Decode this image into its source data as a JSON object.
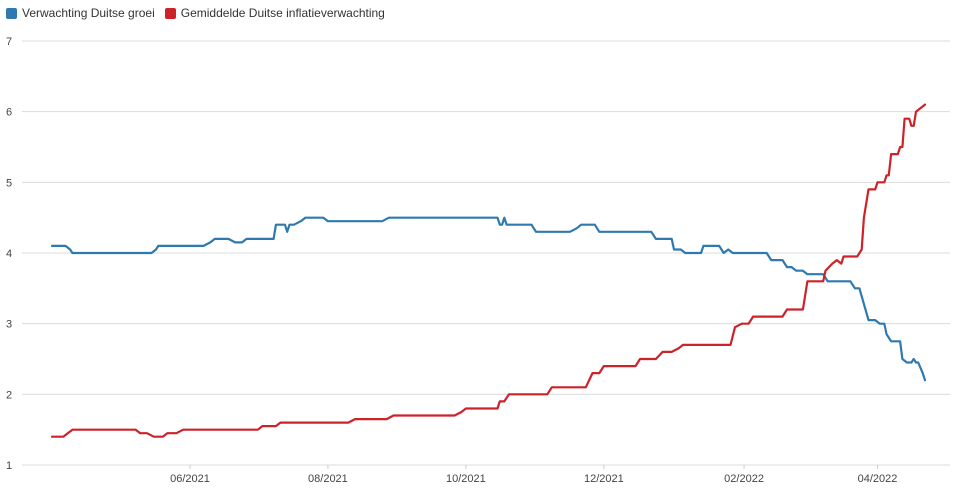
{
  "chart_data": {
    "type": "line",
    "title": "",
    "xlabel": "",
    "ylabel": "",
    "ylim": [
      1,
      7
    ],
    "y_ticks": [
      1,
      2,
      3,
      4,
      5,
      6,
      7
    ],
    "x_ticks": [
      "06/2021",
      "08/2021",
      "10/2021",
      "12/2021",
      "02/2022",
      "04/2022"
    ],
    "x_range": [
      "2021-04-01",
      "2022-04-22"
    ],
    "grid": true,
    "legend_position": "top-left",
    "series": [
      {
        "name": "Verwachting Duitse groei",
        "color": "#2e79b0",
        "points": [
          [
            "2021-04-01",
            4.1
          ],
          [
            "2021-04-07",
            4.1
          ],
          [
            "2021-04-09",
            4.05
          ],
          [
            "2021-04-10",
            4.0
          ],
          [
            "2021-05-01",
            4.0
          ],
          [
            "2021-05-15",
            4.0
          ],
          [
            "2021-05-17",
            4.05
          ],
          [
            "2021-05-18",
            4.1
          ],
          [
            "2021-06-07",
            4.1
          ],
          [
            "2021-06-10",
            4.15
          ],
          [
            "2021-06-12",
            4.2
          ],
          [
            "2021-06-18",
            4.2
          ],
          [
            "2021-06-21",
            4.15
          ],
          [
            "2021-06-24",
            4.15
          ],
          [
            "2021-06-26",
            4.2
          ],
          [
            "2021-07-08",
            4.2
          ],
          [
            "2021-07-09",
            4.4
          ],
          [
            "2021-07-13",
            4.4
          ],
          [
            "2021-07-14",
            4.3
          ],
          [
            "2021-07-15",
            4.4
          ],
          [
            "2021-07-17",
            4.4
          ],
          [
            "2021-07-20",
            4.45
          ],
          [
            "2021-07-22",
            4.5
          ],
          [
            "2021-07-30",
            4.5
          ],
          [
            "2021-08-01",
            4.45
          ],
          [
            "2021-08-25",
            4.45
          ],
          [
            "2021-08-28",
            4.5
          ],
          [
            "2021-10-15",
            4.5
          ],
          [
            "2021-10-16",
            4.4
          ],
          [
            "2021-10-17",
            4.4
          ],
          [
            "2021-10-18",
            4.5
          ],
          [
            "2021-10-19",
            4.4
          ],
          [
            "2021-10-30",
            4.4
          ],
          [
            "2021-11-01",
            4.3
          ],
          [
            "2021-11-16",
            4.3
          ],
          [
            "2021-11-19",
            4.35
          ],
          [
            "2021-11-21",
            4.4
          ],
          [
            "2021-11-27",
            4.4
          ],
          [
            "2021-11-28",
            4.35
          ],
          [
            "2021-11-29",
            4.3
          ],
          [
            "2021-12-22",
            4.3
          ],
          [
            "2021-12-24",
            4.2
          ],
          [
            "2021-12-31",
            4.2
          ],
          [
            "2022-01-01",
            4.05
          ],
          [
            "2022-01-04",
            4.05
          ],
          [
            "2022-01-06",
            4.0
          ],
          [
            "2022-01-13",
            4.0
          ],
          [
            "2022-01-14",
            4.1
          ],
          [
            "2022-01-21",
            4.1
          ],
          [
            "2022-01-23",
            4.0
          ],
          [
            "2022-01-25",
            4.05
          ],
          [
            "2022-01-27",
            4.0
          ],
          [
            "2022-02-11",
            4.0
          ],
          [
            "2022-02-13",
            3.9
          ],
          [
            "2022-02-18",
            3.9
          ],
          [
            "2022-02-20",
            3.8
          ],
          [
            "2022-02-22",
            3.8
          ],
          [
            "2022-02-24",
            3.75
          ],
          [
            "2022-02-27",
            3.75
          ],
          [
            "2022-03-01",
            3.7
          ],
          [
            "2022-03-08",
            3.7
          ],
          [
            "2022-03-10",
            3.6
          ],
          [
            "2022-03-20",
            3.6
          ],
          [
            "2022-03-22",
            3.5
          ],
          [
            "2022-03-24",
            3.5
          ],
          [
            "2022-03-28",
            3.05
          ],
          [
            "2022-03-31",
            3.05
          ],
          [
            "2022-04-02",
            3.0
          ],
          [
            "2022-04-04",
            3.0
          ],
          [
            "2022-04-05",
            2.85
          ],
          [
            "2022-04-07",
            2.75
          ],
          [
            "2022-04-11",
            2.75
          ],
          [
            "2022-04-12",
            2.5
          ],
          [
            "2022-04-14",
            2.45
          ],
          [
            "2022-04-16",
            2.45
          ],
          [
            "2022-04-17",
            2.5
          ],
          [
            "2022-04-18",
            2.45
          ],
          [
            "2022-04-19",
            2.45
          ],
          [
            "2022-04-21",
            2.3
          ],
          [
            "2022-04-22",
            2.2
          ]
        ]
      },
      {
        "name": "Gemiddelde Duitse inflatieverwachting",
        "color": "#cc2229",
        "points": [
          [
            "2021-04-01",
            1.4
          ],
          [
            "2021-04-06",
            1.4
          ],
          [
            "2021-04-08",
            1.45
          ],
          [
            "2021-04-10",
            1.5
          ],
          [
            "2021-05-08",
            1.5
          ],
          [
            "2021-05-10",
            1.45
          ],
          [
            "2021-05-13",
            1.45
          ],
          [
            "2021-05-16",
            1.4
          ],
          [
            "2021-05-20",
            1.4
          ],
          [
            "2021-05-22",
            1.45
          ],
          [
            "2021-05-26",
            1.45
          ],
          [
            "2021-05-29",
            1.5
          ],
          [
            "2021-07-01",
            1.5
          ],
          [
            "2021-07-03",
            1.55
          ],
          [
            "2021-07-09",
            1.55
          ],
          [
            "2021-07-11",
            1.6
          ],
          [
            "2021-08-10",
            1.6
          ],
          [
            "2021-08-13",
            1.65
          ],
          [
            "2021-08-27",
            1.65
          ],
          [
            "2021-08-30",
            1.7
          ],
          [
            "2021-09-26",
            1.7
          ],
          [
            "2021-09-29",
            1.75
          ],
          [
            "2021-10-01",
            1.8
          ],
          [
            "2021-10-15",
            1.8
          ],
          [
            "2021-10-16",
            1.9
          ],
          [
            "2021-10-18",
            1.9
          ],
          [
            "2021-10-20",
            2.0
          ],
          [
            "2021-11-06",
            2.0
          ],
          [
            "2021-11-08",
            2.1
          ],
          [
            "2021-11-23",
            2.1
          ],
          [
            "2021-11-26",
            2.3
          ],
          [
            "2021-11-29",
            2.3
          ],
          [
            "2021-12-01",
            2.4
          ],
          [
            "2021-12-15",
            2.4
          ],
          [
            "2021-12-17",
            2.5
          ],
          [
            "2021-12-24",
            2.5
          ],
          [
            "2021-12-27",
            2.6
          ],
          [
            "2021-12-31",
            2.6
          ],
          [
            "2022-01-03",
            2.65
          ],
          [
            "2022-01-05",
            2.7
          ],
          [
            "2022-01-26",
            2.7
          ],
          [
            "2022-01-28",
            2.95
          ],
          [
            "2022-01-31",
            3.0
          ],
          [
            "2022-02-03",
            3.0
          ],
          [
            "2022-02-05",
            3.1
          ],
          [
            "2022-02-18",
            3.1
          ],
          [
            "2022-02-20",
            3.2
          ],
          [
            "2022-02-27",
            3.2
          ],
          [
            "2022-03-01",
            3.6
          ],
          [
            "2022-03-08",
            3.6
          ],
          [
            "2022-03-09",
            3.75
          ],
          [
            "2022-03-12",
            3.85
          ],
          [
            "2022-03-14",
            3.9
          ],
          [
            "2022-03-16",
            3.85
          ],
          [
            "2022-03-17",
            3.95
          ],
          [
            "2022-03-23",
            3.95
          ],
          [
            "2022-03-25",
            4.05
          ],
          [
            "2022-03-26",
            4.5
          ],
          [
            "2022-03-28",
            4.9
          ],
          [
            "2022-03-31",
            4.9
          ],
          [
            "2022-04-01",
            5.0
          ],
          [
            "2022-04-04",
            5.0
          ],
          [
            "2022-04-05",
            5.1
          ],
          [
            "2022-04-06",
            5.1
          ],
          [
            "2022-04-07",
            5.4
          ],
          [
            "2022-04-10",
            5.4
          ],
          [
            "2022-04-11",
            5.5
          ],
          [
            "2022-04-12",
            5.5
          ],
          [
            "2022-04-13",
            5.9
          ],
          [
            "2022-04-15",
            5.9
          ],
          [
            "2022-04-16",
            5.8
          ],
          [
            "2022-04-17",
            5.8
          ],
          [
            "2022-04-18",
            6.0
          ],
          [
            "2022-04-20",
            6.05
          ],
          [
            "2022-04-22",
            6.1
          ]
        ]
      }
    ]
  }
}
